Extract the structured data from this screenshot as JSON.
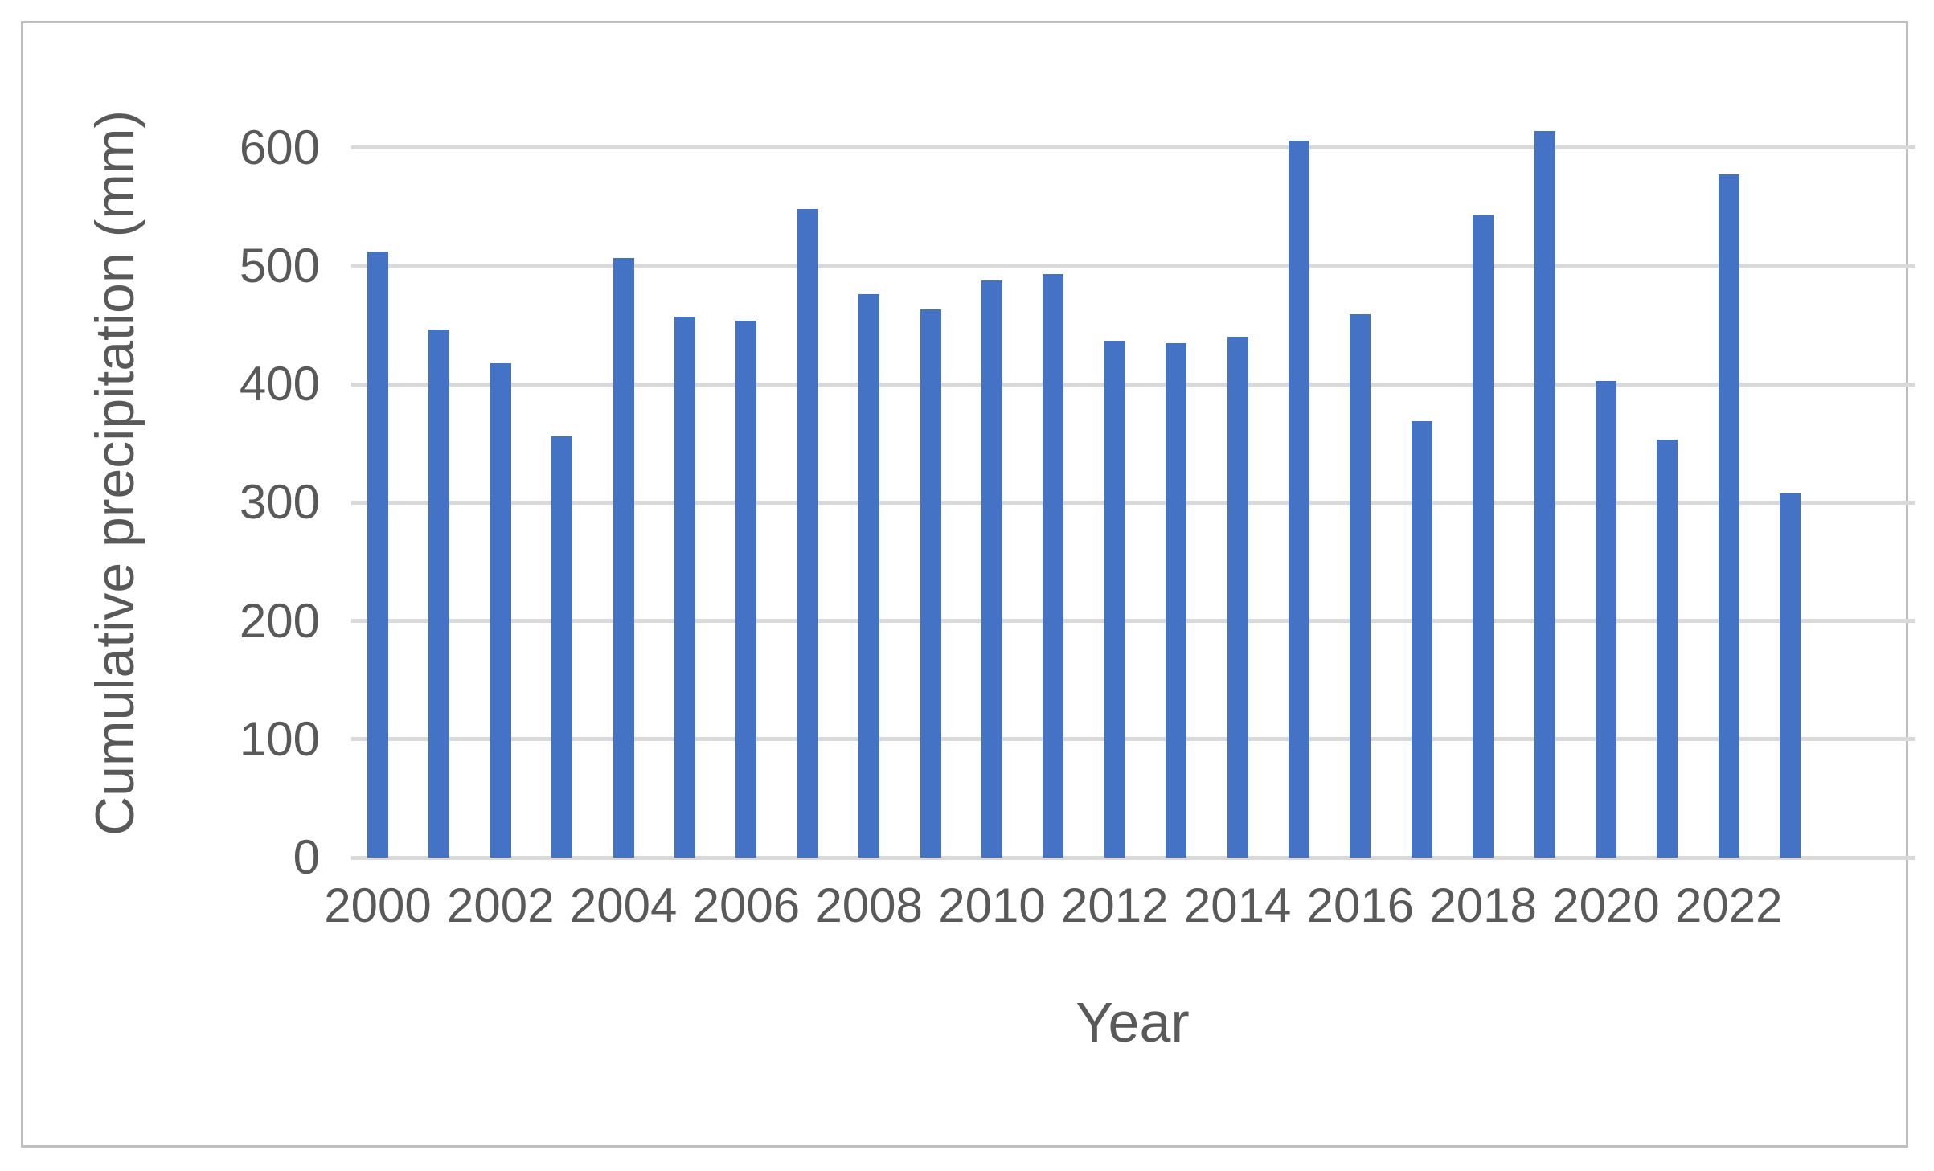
{
  "figure": {
    "background_color": "#ffffff",
    "border_color": "#bfbfbf"
  },
  "chart_data": {
    "type": "bar",
    "title": "",
    "xlabel": "Year",
    "ylabel": "Cumulative precipitation (mm)",
    "categories": [
      2000,
      2001,
      2002,
      2003,
      2004,
      2005,
      2006,
      2007,
      2008,
      2009,
      2010,
      2011,
      2012,
      2013,
      2014,
      2015,
      2016,
      2017,
      2018,
      2019,
      2020,
      2021,
      2022,
      2023
    ],
    "values": [
      512,
      446,
      418,
      356,
      507,
      457,
      454,
      548,
      476,
      463,
      488,
      493,
      437,
      435,
      440,
      606,
      459,
      369,
      543,
      614,
      403,
      353,
      577,
      308
    ],
    "x_tick_labels": [
      "2000",
      "2002",
      "2004",
      "2006",
      "2008",
      "2010",
      "2012",
      "2014",
      "2016",
      "2018",
      "2020",
      "2022"
    ],
    "y_ticks": [
      0,
      100,
      200,
      300,
      400,
      500,
      600
    ],
    "ylim": [
      0,
      650
    ],
    "grid": true,
    "legend_position": "none",
    "bar_color": "#4472c4",
    "gridline_color": "#d9d9d9",
    "axis_text_color": "#595959"
  }
}
